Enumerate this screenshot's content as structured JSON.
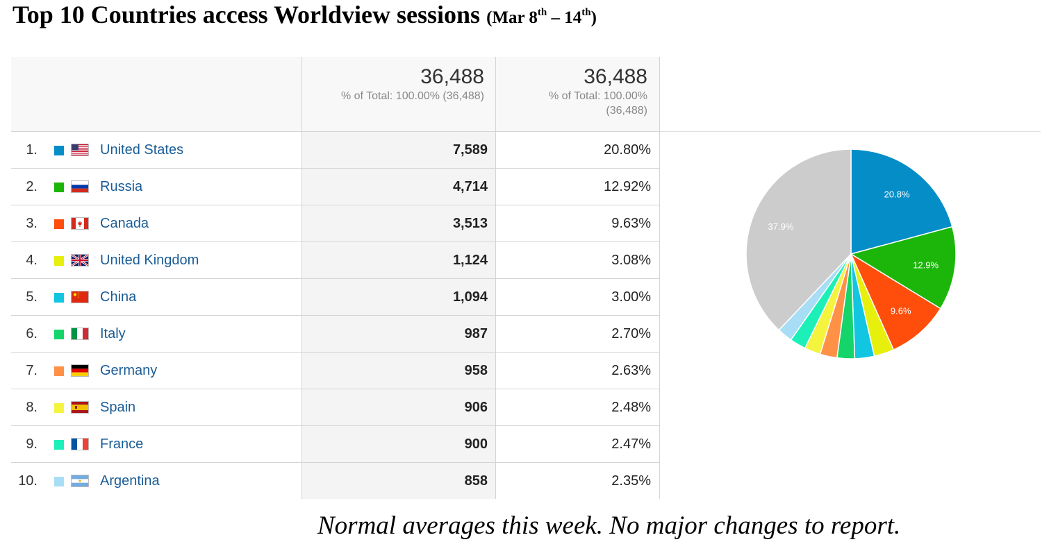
{
  "title": {
    "main": "Top 10 Countries access Worldview sessions",
    "date_prefix": "(Mar 8",
    "sup1": "th",
    "date_mid": " – 14",
    "sup2": "th",
    "date_suffix": ")"
  },
  "header": {
    "col1_total": "36,488",
    "col1_sub": "% of Total: 100.00% (36,488)",
    "col2_total": "36,488",
    "col2_sub1": "% of Total: 100.00%",
    "col2_sub2": "(36,488)"
  },
  "rows": [
    {
      "rank": "1.",
      "country": "United States",
      "sessions": "7,589",
      "percent": "20.80%",
      "color": "#058dc7",
      "flag": "us-flag-icon"
    },
    {
      "rank": "2.",
      "country": "Russia",
      "sessions": "4,714",
      "percent": "12.92%",
      "color": "#1cb60a",
      "flag": "ru-flag-icon"
    },
    {
      "rank": "3.",
      "country": "Canada",
      "sessions": "3,513",
      "percent": "9.63%",
      "color": "#ff4e0c",
      "flag": "ca-flag-icon"
    },
    {
      "rank": "4.",
      "country": "United Kingdom",
      "sessions": "1,124",
      "percent": "3.08%",
      "color": "#e7f00c",
      "flag": "gb-flag-icon"
    },
    {
      "rank": "5.",
      "country": "China",
      "sessions": "1,094",
      "percent": "3.00%",
      "color": "#12c5e0",
      "flag": "cn-flag-icon"
    },
    {
      "rank": "6.",
      "country": "Italy",
      "sessions": "987",
      "percent": "2.70%",
      "color": "#15d46a",
      "flag": "it-flag-icon"
    },
    {
      "rank": "7.",
      "country": "Germany",
      "sessions": "958",
      "percent": "2.63%",
      "color": "#ff9147",
      "flag": "de-flag-icon"
    },
    {
      "rank": "8.",
      "country": "Spain",
      "sessions": "906",
      "percent": "2.48%",
      "color": "#f4f43f",
      "flag": "es-flag-icon"
    },
    {
      "rank": "9.",
      "country": "France",
      "sessions": "900",
      "percent": "2.47%",
      "color": "#1cf0b8",
      "flag": "fr-flag-icon"
    },
    {
      "rank": "10.",
      "country": "Argentina",
      "sessions": "858",
      "percent": "2.35%",
      "color": "#a8def5",
      "flag": "ar-flag-icon"
    }
  ],
  "chart_data": {
    "type": "pie",
    "categories": [
      "United States",
      "Russia",
      "Canada",
      "United Kingdom",
      "China",
      "Italy",
      "Germany",
      "Spain",
      "France",
      "Argentina",
      "Other"
    ],
    "values": [
      20.8,
      12.92,
      9.63,
      3.08,
      3.0,
      2.7,
      2.63,
      2.48,
      2.47,
      2.35,
      37.94
    ],
    "colors": [
      "#058dc7",
      "#1cb60a",
      "#ff4e0c",
      "#e7f00c",
      "#12c5e0",
      "#15d46a",
      "#ff9147",
      "#f4f43f",
      "#1cf0b8",
      "#a8def5",
      "#cccccc"
    ],
    "labels": [
      "20.8%",
      "12.9%",
      "9.6%",
      "",
      "",
      "",
      "",
      "",
      "",
      "",
      "37.9%"
    ]
  },
  "note": "Normal averages this week. No major changes to report."
}
